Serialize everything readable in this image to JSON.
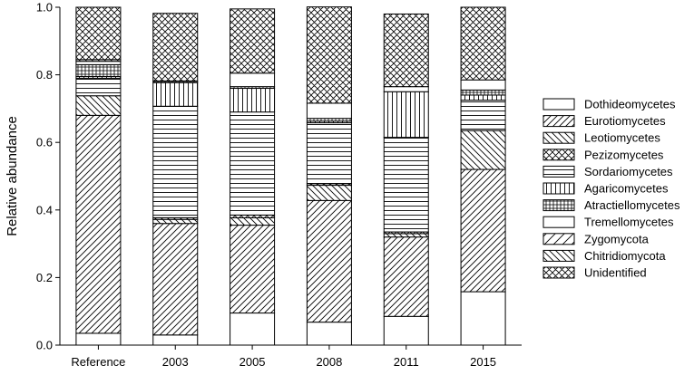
{
  "chart_data": {
    "type": "bar",
    "stacked": true,
    "title": "",
    "xlabel": "",
    "ylabel": "Relative abundance",
    "ylim": [
      0,
      1.0
    ],
    "yticks": [
      "0.0",
      "0.2",
      "0.4",
      "0.6",
      "0.8",
      "1.0"
    ],
    "categories": [
      "Reference",
      "2003",
      "2005",
      "2008",
      "2011",
      "2015"
    ],
    "legend_position": "right",
    "series": [
      {
        "name": "Dothideomycetes",
        "pattern": "blank",
        "values": [
          0.035,
          0.03,
          0.095,
          0.068,
          0.085,
          0.158
        ]
      },
      {
        "name": "Eurotiomycetes",
        "pattern": "diag-dense",
        "values": [
          0.645,
          0.33,
          0.26,
          0.36,
          0.235,
          0.362
        ]
      },
      {
        "name": "Leotiomycetes",
        "pattern": "backdiag",
        "values": [
          0.058,
          0.012,
          0.022,
          0.045,
          0.01,
          0.115
        ]
      },
      {
        "name": "Pezizomycetes",
        "pattern": "cross",
        "values": [
          0.0,
          0.005,
          0.008,
          0.005,
          0.005,
          0.0
        ]
      },
      {
        "name": "Sordariomycetes",
        "pattern": "hlines",
        "values": [
          0.052,
          0.33,
          0.305,
          0.18,
          0.28,
          0.09
        ]
      },
      {
        "name": "Agaricomycetes",
        "pattern": "vlines",
        "values": [
          0.005,
          0.07,
          0.07,
          0.005,
          0.135,
          0.015
        ]
      },
      {
        "name": "Atractiellomycetes",
        "pattern": "grid",
        "values": [
          0.035,
          0.005,
          0.005,
          0.008,
          0.0,
          0.015
        ]
      },
      {
        "name": "Tremellomycetes",
        "pattern": "blank",
        "values": [
          0.01,
          0.0,
          0.04,
          0.045,
          0.015,
          0.03
        ]
      },
      {
        "name": "Zygomycota",
        "pattern": "diag-sparse",
        "values": [
          0.0,
          0.0,
          0.0,
          0.0,
          0.0,
          0.0
        ]
      },
      {
        "name": "Chitridiomycota",
        "pattern": "backdiag",
        "values": [
          0.005,
          0.0,
          0.0,
          0.0,
          0.0,
          0.0
        ]
      },
      {
        "name": "Unidentified",
        "pattern": "cross",
        "values": [
          0.155,
          0.2,
          0.19,
          0.285,
          0.215,
          0.215
        ]
      }
    ]
  }
}
